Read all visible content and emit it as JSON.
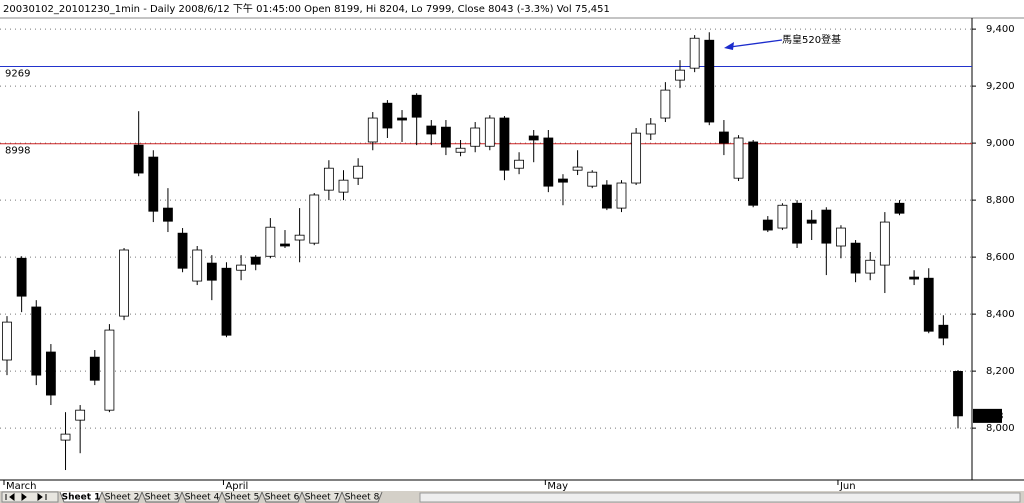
{
  "chart_data": {
    "type": "candlestick",
    "title": "20030102_20101230_1min - Daily 2008/6/12 下午 01:45:00 Open 8199, Hi 8204, Lo 7999, Close 8043 (-3.3%) Vol 75,451",
    "categories": [
      "March",
      null,
      null,
      null,
      null,
      null,
      null,
      null,
      null,
      null,
      null,
      null,
      null,
      null,
      null,
      "April",
      null,
      null,
      null,
      null,
      null,
      null,
      null,
      null,
      null,
      null,
      null,
      null,
      null,
      null,
      null,
      null,
      null,
      null,
      null,
      null,
      null,
      "May",
      null,
      null,
      null,
      null,
      null,
      null,
      null,
      null,
      null,
      null,
      null,
      null,
      null,
      null,
      null,
      null,
      null,
      null,
      null,
      "Jun",
      null,
      null,
      null,
      null,
      null,
      null,
      null,
      null
    ],
    "open": [
      8239,
      8596,
      8425,
      8267,
      7958,
      8028,
      8249,
      8063,
      8393,
      8993,
      8951,
      8772,
      8684,
      8516,
      8579,
      8561,
      8554,
      8600,
      8603,
      8646,
      8660,
      8649,
      8835,
      8828,
      8877,
      9004,
      9140,
      9088,
      9168,
      9060,
      9056,
      8968,
      8989,
      8989,
      9088,
      8912,
      9025,
      9018,
      8874,
      8905,
      8849,
      8853,
      8772,
      8860,
      9032,
      9088,
      9221,
      9263,
      9361,
      9039,
      8877,
      9004,
      8730,
      8702,
      8789,
      8730,
      8765,
      8639,
      8649,
      8544,
      8572,
      8789,
      8530,
      8526,
      8361,
      8199
    ],
    "high": [
      8393,
      8603,
      8449,
      8295,
      8056,
      8081,
      8274,
      8365,
      8632,
      9112,
      8975,
      8842,
      8702,
      8639,
      8607,
      8582,
      8607,
      8607,
      8737,
      8695,
      8772,
      8825,
      8940,
      8905,
      8947,
      9109,
      9151,
      9116,
      9175,
      9081,
      9081,
      9011,
      9074,
      9098,
      9095,
      8968,
      9046,
      9046,
      8891,
      8975,
      8905,
      8870,
      8870,
      9053,
      9088,
      9214,
      9291,
      9379,
      9389,
      9081,
      9028,
      9011,
      8744,
      8789,
      8800,
      8765,
      8775,
      8712,
      8660,
      8618,
      8758,
      8800,
      8554,
      8561,
      8396,
      8204
    ],
    "low": [
      8186,
      8407,
      8151,
      8081,
      7853,
      7912,
      8151,
      8056,
      8379,
      8884,
      8723,
      8688,
      8547,
      8502,
      8449,
      8319,
      8519,
      8554,
      8596,
      8632,
      8582,
      8642,
      8800,
      8800,
      8853,
      8975,
      9018,
      9004,
      8993,
      8993,
      8958,
      8954,
      8968,
      8975,
      8870,
      8891,
      8933,
      8828,
      8782,
      8888,
      8842,
      8765,
      8758,
      8853,
      9011,
      9074,
      9193,
      9249,
      9063,
      8958,
      8867,
      8775,
      8688,
      8695,
      8632,
      8660,
      8537,
      8596,
      8512,
      8519,
      8474,
      8747,
      8502,
      8333,
      8291,
      7999
    ],
    "close": [
      8372,
      8463,
      8186,
      8116,
      7979,
      8063,
      8168,
      8344,
      8625,
      8895,
      8761,
      8726,
      8561,
      8625,
      8519,
      8326,
      8572,
      8575,
      8705,
      8639,
      8677,
      8818,
      8912,
      8870,
      8919,
      9088,
      9053,
      9081,
      9091,
      9032,
      8986,
      8982,
      9053,
      9088,
      8905,
      8940,
      9011,
      8849,
      8863,
      8916,
      8898,
      8772,
      8860,
      9035,
      9067,
      9186,
      9256,
      9368,
      9074,
      9000,
      9018,
      8782,
      8695,
      8782,
      8649,
      8719,
      8649,
      8702,
      8544,
      8589,
      8723,
      8754,
      8523,
      8340,
      8316,
      8043
    ],
    "last_label": "8,043",
    "up_color": "#ffffff",
    "down_color": "#000000",
    "ylim": [
      7818,
      9439
    ],
    "yticks": [
      {
        "value": 8000,
        "label": "8,000"
      },
      {
        "value": 8200,
        "label": "8,200"
      },
      {
        "value": 8400,
        "label": "8,400"
      },
      {
        "value": 8600,
        "label": "8,600"
      },
      {
        "value": 8800,
        "label": "8,800"
      },
      {
        "value": 9000,
        "label": "9,000"
      },
      {
        "value": 9200,
        "label": "9,200"
      },
      {
        "value": 9400,
        "label": "9,400"
      }
    ],
    "grid": true,
    "hlines": [
      {
        "value": 9269,
        "color": "#2233cc"
      },
      {
        "value": 8998,
        "color": "#cc2222"
      }
    ],
    "annotation": "馬皇520登基"
  },
  "tabs": [
    "Sheet 1",
    "Sheet 2",
    "Sheet 3",
    "Sheet 4",
    "Sheet 5",
    "Sheet 6",
    "Sheet 7",
    "Sheet 8"
  ]
}
